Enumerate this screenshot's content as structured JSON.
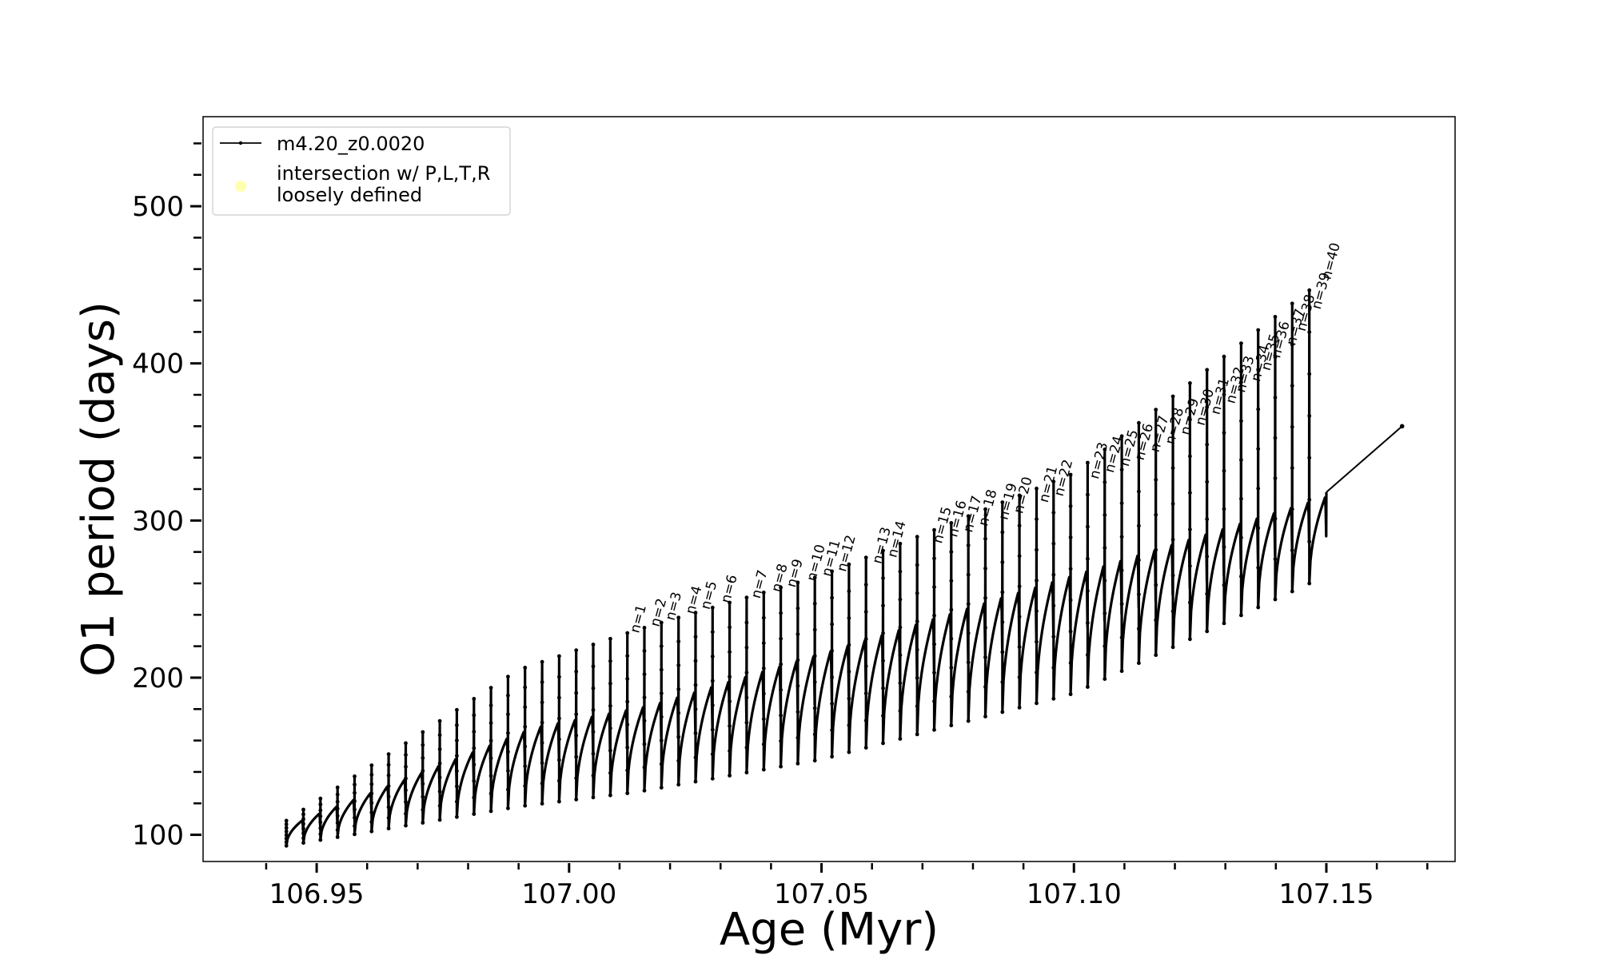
{
  "chart_data": {
    "type": "line",
    "xlabel": "Age (Myr)",
    "ylabel": "O1 period (days)",
    "xlim": [
      106.9275,
      107.1755
    ],
    "ylim": [
      83,
      557
    ],
    "x_ticks": [
      106.95,
      107.0,
      107.05,
      107.1,
      107.15
    ],
    "x_tick_labels": [
      "106.95",
      "107.00",
      "107.05",
      "107.10",
      "107.15"
    ],
    "y_ticks": [
      100,
      200,
      300,
      400,
      500
    ],
    "y_tick_labels": [
      "100",
      "200",
      "300",
      "400",
      "500"
    ],
    "legend_position": "upper-left",
    "legend": [
      {
        "label": "m4.20_z0.0020",
        "marker": "line-dot",
        "color": "#000000"
      },
      {
        "label_lines": [
          "intersection w/ P,L,T,R",
          "loosely defined"
        ],
        "marker": "circle",
        "color": "#ffffb0"
      }
    ],
    "series": [
      {
        "name": "m4.20_z0.0020",
        "color": "#000000",
        "pulse_count": 61,
        "start_age": 106.944,
        "end_age": 107.15,
        "tail_point": [
          107.165,
          360
        ],
        "envelope": [
          {
            "age": 106.944,
            "low": 93,
            "high": 109,
            "spike": 109
          },
          {
            "age": 106.99,
            "low": 118,
            "high": 168,
            "spike": 205
          },
          {
            "age": 107.013,
            "low": 127,
            "high": 182,
            "spike": 230
          },
          {
            "age": 107.05,
            "low": 148,
            "high": 218,
            "spike": 265
          },
          {
            "age": 107.1,
            "low": 190,
            "high": 268,
            "spike": 330
          },
          {
            "age": 107.15,
            "low": 265,
            "high": 318,
            "spike": 455
          }
        ]
      }
    ],
    "annotations": [
      {
        "label": "n=1",
        "x": 107.013,
        "y": 230
      },
      {
        "label": "n=2",
        "x": 107.017,
        "y": 234
      },
      {
        "label": "n=3",
        "x": 107.02,
        "y": 238
      },
      {
        "label": "n=4",
        "x": 107.024,
        "y": 242
      },
      {
        "label": "n=5",
        "x": 107.027,
        "y": 245
      },
      {
        "label": "n=6",
        "x": 107.031,
        "y": 249
      },
      {
        "label": "n=7",
        "x": 107.037,
        "y": 252
      },
      {
        "label": "n=8",
        "x": 107.041,
        "y": 256
      },
      {
        "label": "n=9",
        "x": 107.044,
        "y": 259
      },
      {
        "label": "n=10",
        "x": 107.048,
        "y": 263
      },
      {
        "label": "n=11",
        "x": 107.051,
        "y": 266
      },
      {
        "label": "n=12",
        "x": 107.054,
        "y": 269
      },
      {
        "label": "n=13",
        "x": 107.061,
        "y": 274
      },
      {
        "label": "n=14",
        "x": 107.064,
        "y": 278
      },
      {
        "label": "n=15",
        "x": 107.073,
        "y": 287
      },
      {
        "label": "n=16",
        "x": 107.076,
        "y": 291
      },
      {
        "label": "n=17",
        "x": 107.079,
        "y": 294
      },
      {
        "label": "n=18",
        "x": 107.082,
        "y": 298
      },
      {
        "label": "n=19",
        "x": 107.086,
        "y": 302
      },
      {
        "label": "n=20",
        "x": 107.089,
        "y": 306
      },
      {
        "label": "n=21",
        "x": 107.094,
        "y": 313
      },
      {
        "label": "n=22",
        "x": 107.097,
        "y": 317
      },
      {
        "label": "n=23",
        "x": 107.104,
        "y": 328
      },
      {
        "label": "n=24",
        "x": 107.107,
        "y": 332
      },
      {
        "label": "n=25",
        "x": 107.11,
        "y": 336
      },
      {
        "label": "n=26",
        "x": 107.113,
        "y": 340
      },
      {
        "label": "n=27",
        "x": 107.116,
        "y": 345
      },
      {
        "label": "n=28",
        "x": 107.119,
        "y": 350
      },
      {
        "label": "n=29",
        "x": 107.122,
        "y": 356
      },
      {
        "label": "n=30",
        "x": 107.125,
        "y": 362
      },
      {
        "label": "n=31",
        "x": 107.128,
        "y": 369
      },
      {
        "label": "n=32",
        "x": 107.131,
        "y": 376
      },
      {
        "label": "n=33",
        "x": 107.133,
        "y": 383
      },
      {
        "label": "n=34",
        "x": 107.136,
        "y": 390
      },
      {
        "label": "n=35",
        "x": 107.138,
        "y": 397
      },
      {
        "label": "n=36",
        "x": 107.14,
        "y": 405
      },
      {
        "label": "n=37",
        "x": 107.143,
        "y": 413
      },
      {
        "label": "n=38",
        "x": 107.145,
        "y": 422
      },
      {
        "label": "n=39",
        "x": 107.148,
        "y": 436
      },
      {
        "label": "n=40",
        "x": 107.15,
        "y": 455
      }
    ]
  }
}
